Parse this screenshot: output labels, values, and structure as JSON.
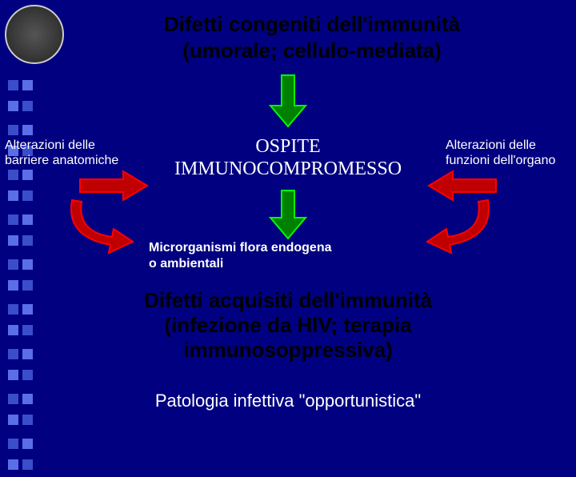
{
  "background_color": "#000080",
  "logo": {
    "name": "university-seal"
  },
  "decorative_squares": {
    "rows": 18,
    "colors": [
      "#3a4ecb",
      "#5a6ee8"
    ]
  },
  "title": {
    "line1": "Difetti congeniti dell'immunità",
    "line2": "(umorale; cellulo-mediata)",
    "color": "#000000",
    "fontsize": 26
  },
  "left_label": {
    "line1": "Alterazioni delle",
    "line2": "barriere anatomiche",
    "color": "#ffffff",
    "fontsize": 16
  },
  "right_label": {
    "line1": "Alterazioni delle",
    "line2": "funzioni dell'organo",
    "color": "#ffffff",
    "fontsize": 16
  },
  "center_box": {
    "line1": "OSPITE",
    "line2": "IMMUNOCOMPROMESSO",
    "color": "#ffffff",
    "fontsize": 24
  },
  "micro_text": {
    "line1": "Microrganismi flora endogena",
    "line2": "o ambientali",
    "color": "#ffffff",
    "fontsize": 16
  },
  "bottom_title": {
    "line1": "Difetti acquisiti dell'immunità",
    "line2": "(infezione da HIV; terapia",
    "line3": "immunosoppressiva)",
    "color": "#000000",
    "fontsize": 26
  },
  "bottom_sub": {
    "text": "Patologia infettiva \"opportunistica\"",
    "color": "#ffffff",
    "fontsize": 22
  },
  "arrows": {
    "down_top": {
      "fill": "#008000",
      "stroke": "#00ff00"
    },
    "down_bottom": {
      "fill": "#008000",
      "stroke": "#00ff00"
    },
    "right": {
      "fill": "#c00000",
      "stroke": "#ff0000"
    },
    "left": {
      "fill": "#c00000",
      "stroke": "#ff0000"
    },
    "curve_left": {
      "fill": "#c00000",
      "stroke": "#ff0000"
    },
    "curve_right": {
      "fill": "#c00000",
      "stroke": "#ff0000"
    }
  }
}
